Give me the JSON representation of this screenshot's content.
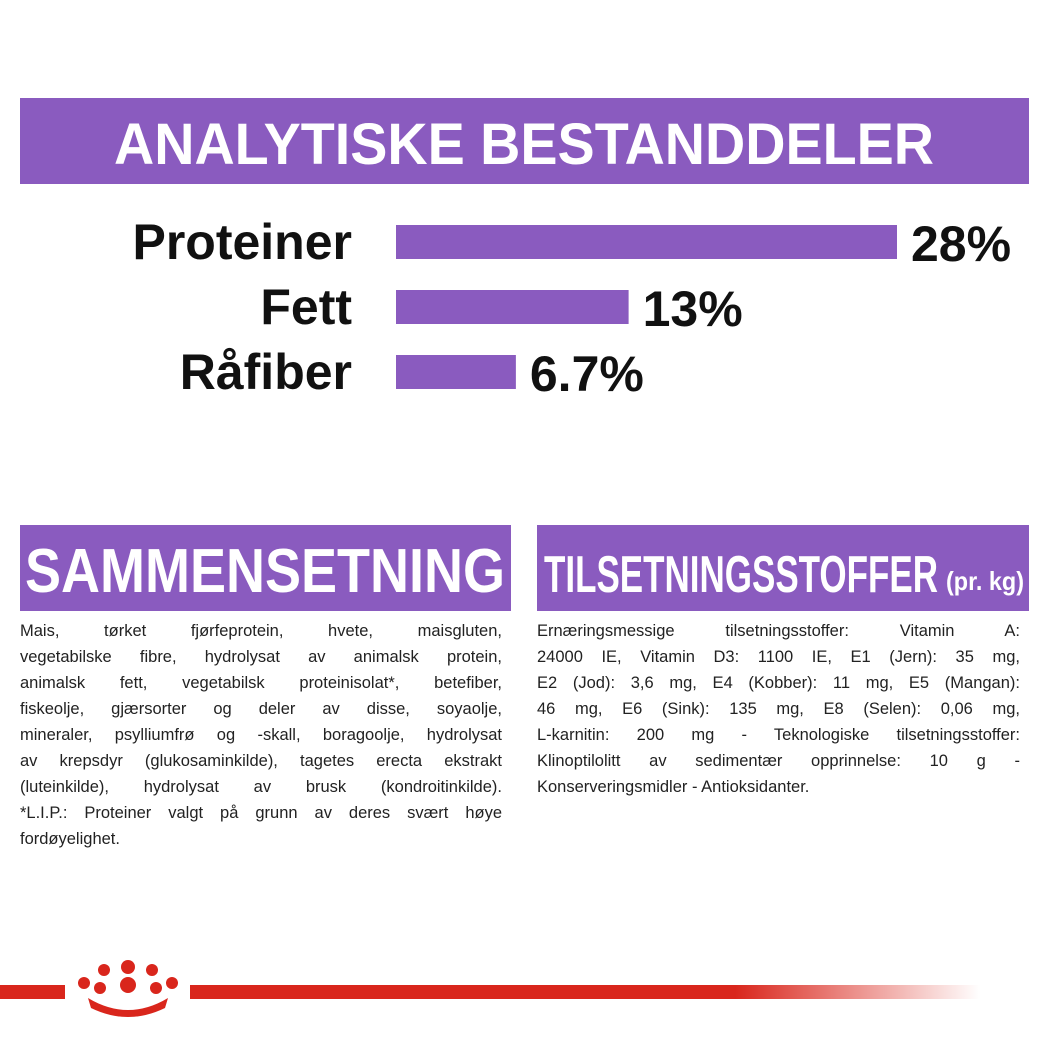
{
  "header": {
    "title": "ANALYTISKE BESTANDDELER"
  },
  "chart_data": {
    "type": "bar",
    "categories": [
      "Proteiner",
      "Fett",
      "Råfiber"
    ],
    "values": [
      28,
      13,
      6.7
    ],
    "value_labels": [
      "28%",
      "13%",
      "6.7%"
    ],
    "color": "#8a5bbf"
  },
  "sections": [
    {
      "title": "SAMMENSETNING",
      "lines": [
        "Mais, tørket fjørfeprotein, hvete, maisgluten,",
        "vegetabilske fibre, hydrolysat av animalsk protein,",
        "animalsk fett, vegetabilsk proteinisolat*, betefiber,",
        "fiskeolje, gjærsorter og deler av disse, soyaolje,",
        "mineraler, psylliumfrø og -skall, boragoolje, hydrolysat",
        "av krepsdyr (glukosaminkilde), tagetes erecta ekstrakt",
        "(luteinkilde), hydrolysat av brusk (kondroitinkilde).",
        "*L.I.P.: Proteiner valgt på grunn av deres svært høye",
        "fordøyelighet."
      ]
    },
    {
      "title": "TILSETNINGSSTOFFER",
      "title_suffix": "(pr. kg)",
      "lines": [
        "Ernæringsmessige tilsetningsstoffer: Vitamin A:",
        "24000 IE, Vitamin D3: 1100 IE, E1 (Jern): 35 mg,",
        "E2 (Jod): 3,6 mg, E4 (Kobber): 11 mg, E5 (Mangan):",
        "46 mg, E6 (Sink): 135 mg, E8 (Selen): 0,06 mg,",
        "L-karnitin: 200 mg - Teknologiske tilsetningsstoffer:",
        "Klinoptilolitt av sedimentær opprinnelse: 10 g -",
        "Konserveringsmidler - Antioksidanter."
      ]
    }
  ]
}
